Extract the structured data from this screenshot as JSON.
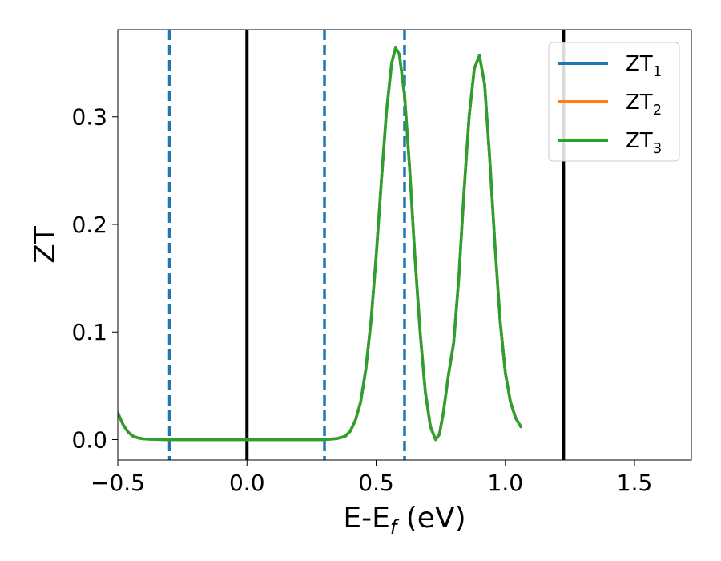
{
  "chart_data": {
    "type": "line",
    "title": "",
    "xlabel": {
      "main": "E-E",
      "sub": "f",
      "tail": " (eV)"
    },
    "ylabel": "ZT",
    "xlim": [
      -0.5,
      1.72
    ],
    "ylim": [
      -0.019,
      0.381
    ],
    "xticks": [
      {
        "value": -0.5,
        "label": "−0.5"
      },
      {
        "value": 0.0,
        "label": "0.0"
      },
      {
        "value": 0.5,
        "label": "0.5"
      },
      {
        "value": 1.0,
        "label": "1.0"
      },
      {
        "value": 1.5,
        "label": "1.5"
      }
    ],
    "yticks": [
      {
        "value": 0.0,
        "label": "0.0"
      },
      {
        "value": 0.1,
        "label": "0.1"
      },
      {
        "value": 0.2,
        "label": "0.2"
      },
      {
        "value": 0.3,
        "label": "0.3"
      }
    ],
    "grid": false,
    "legend_position": "top-right",
    "vlines": [
      {
        "x": -0.3,
        "style": "dashed",
        "color": "#1f77b4"
      },
      {
        "x": 0.0,
        "style": "solid",
        "color": "#000000"
      },
      {
        "x": 0.3,
        "style": "dashed",
        "color": "#1f77b4"
      },
      {
        "x": 0.61,
        "style": "dashed",
        "color": "#1f77b4"
      },
      {
        "x": 1.225,
        "style": "solid",
        "color": "#000000"
      }
    ],
    "series": [
      {
        "name": "ZT",
        "sub": "1",
        "color": "#1f77b4",
        "ref": "shared"
      },
      {
        "name": "ZT",
        "sub": "2",
        "color": "#ff7f0e",
        "ref": "shared"
      },
      {
        "name": "ZT",
        "sub": "3",
        "color": "#2ca02c",
        "ref": "shared"
      }
    ],
    "shared_points": [
      [
        -0.5,
        0.025
      ],
      [
        -0.48,
        0.014
      ],
      [
        -0.46,
        0.007
      ],
      [
        -0.44,
        0.003
      ],
      [
        -0.42,
        0.0015
      ],
      [
        -0.4,
        0.0007
      ],
      [
        -0.35,
        0.0002
      ],
      [
        -0.3,
        0.0
      ],
      [
        0.0,
        0.0
      ],
      [
        0.3,
        0.0
      ],
      [
        0.35,
        0.001
      ],
      [
        0.38,
        0.003
      ],
      [
        0.4,
        0.008
      ],
      [
        0.42,
        0.018
      ],
      [
        0.44,
        0.035
      ],
      [
        0.46,
        0.065
      ],
      [
        0.48,
        0.11
      ],
      [
        0.5,
        0.17
      ],
      [
        0.52,
        0.24
      ],
      [
        0.54,
        0.305
      ],
      [
        0.56,
        0.35
      ],
      [
        0.575,
        0.364
      ],
      [
        0.59,
        0.358
      ],
      [
        0.61,
        0.32
      ],
      [
        0.63,
        0.25
      ],
      [
        0.65,
        0.17
      ],
      [
        0.67,
        0.1
      ],
      [
        0.69,
        0.045
      ],
      [
        0.71,
        0.012
      ],
      [
        0.73,
        0.0
      ],
      [
        0.745,
        0.005
      ],
      [
        0.76,
        0.025
      ],
      [
        0.78,
        0.06
      ],
      [
        0.8,
        0.09
      ],
      [
        0.82,
        0.15
      ],
      [
        0.84,
        0.23
      ],
      [
        0.86,
        0.3
      ],
      [
        0.88,
        0.345
      ],
      [
        0.9,
        0.357
      ],
      [
        0.92,
        0.33
      ],
      [
        0.94,
        0.26
      ],
      [
        0.96,
        0.18
      ],
      [
        0.98,
        0.11
      ],
      [
        1.0,
        0.062
      ],
      [
        1.02,
        0.035
      ],
      [
        1.04,
        0.02
      ],
      [
        1.06,
        0.012
      ]
    ]
  }
}
